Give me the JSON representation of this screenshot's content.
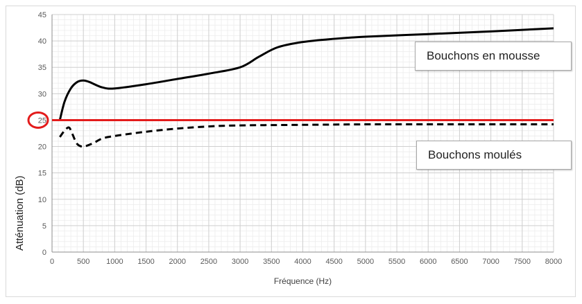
{
  "chart_data": {
    "type": "line",
    "xlabel": "Fréquence (Hz)",
    "ylabel": "Atténuation (dB)",
    "xlim": [
      0,
      8000
    ],
    "ylim": [
      0,
      45
    ],
    "x_ticks": [
      0,
      500,
      1000,
      1500,
      2000,
      2500,
      3000,
      3500,
      4000,
      4500,
      5000,
      5500,
      6000,
      6500,
      7000,
      7500,
      8000
    ],
    "y_ticks": [
      0,
      5,
      10,
      15,
      20,
      25,
      30,
      35,
      40,
      45
    ],
    "grid": true,
    "series": [
      {
        "name": "Bouchons en mousse",
        "style": "solid",
        "color": "#000000",
        "points": [
          [
            125,
            25
          ],
          [
            200,
            28.5
          ],
          [
            300,
            31
          ],
          [
            400,
            32.2
          ],
          [
            500,
            32.5
          ],
          [
            600,
            32.2
          ],
          [
            800,
            31.2
          ],
          [
            1000,
            31
          ],
          [
            1500,
            31.8
          ],
          [
            2000,
            32.8
          ],
          [
            2500,
            33.8
          ],
          [
            3000,
            35
          ],
          [
            3300,
            37
          ],
          [
            3600,
            38.8
          ],
          [
            4000,
            39.8
          ],
          [
            4500,
            40.4
          ],
          [
            5000,
            40.8
          ],
          [
            6000,
            41.3
          ],
          [
            7000,
            41.8
          ],
          [
            8000,
            42.4
          ]
        ]
      },
      {
        "name": "Bouchons moulés",
        "style": "dashed",
        "color": "#000000",
        "points": [
          [
            125,
            21.8
          ],
          [
            200,
            23
          ],
          [
            270,
            23.6
          ],
          [
            320,
            22.5
          ],
          [
            400,
            20.5
          ],
          [
            500,
            20
          ],
          [
            650,
            20.6
          ],
          [
            800,
            21.5
          ],
          [
            1000,
            22
          ],
          [
            1500,
            22.8
          ],
          [
            2000,
            23.4
          ],
          [
            2500,
            23.8
          ],
          [
            3000,
            24
          ],
          [
            4000,
            24.1
          ],
          [
            5000,
            24.2
          ],
          [
            6000,
            24.2
          ],
          [
            8000,
            24.2
          ]
        ]
      }
    ],
    "reference_line": {
      "y": 25,
      "color": "#e31b1b"
    },
    "highlight_tick": {
      "label": "25",
      "color": "#e31b1b"
    }
  }
}
